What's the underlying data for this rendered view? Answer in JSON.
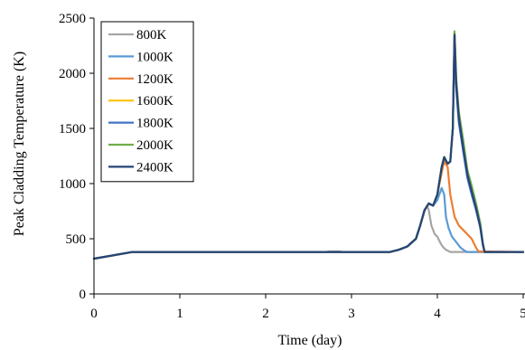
{
  "chart_data": {
    "type": "line",
    "title": "",
    "xlabel": "Time (day)",
    "ylabel": "Peak Cladding Temperature (K)",
    "xlim": [
      0,
      5
    ],
    "ylim": [
      0,
      2500
    ],
    "x_ticks": [
      0,
      1,
      2,
      3,
      4,
      5
    ],
    "x_tick_labels": [
      "0",
      "1",
      "2",
      "3",
      "4",
      "5"
    ],
    "y_ticks": [
      0,
      500,
      1000,
      1500,
      2000,
      2500
    ],
    "y_tick_labels": [
      "0",
      "500",
      "1000",
      "1500",
      "2000",
      "2500"
    ],
    "grid": false,
    "legend_position": "top-left",
    "series": [
      {
        "name": "800K",
        "color": "#a5a5a5",
        "points": [
          [
            0,
            320
          ],
          [
            0.45,
            380
          ],
          [
            2.7,
            380
          ],
          [
            2.75,
            385
          ],
          [
            2.85,
            385
          ],
          [
            2.9,
            380
          ],
          [
            3.45,
            380
          ],
          [
            3.55,
            400
          ],
          [
            3.65,
            430
          ],
          [
            3.75,
            500
          ],
          [
            3.8,
            620
          ],
          [
            3.85,
            750
          ],
          [
            3.88,
            800
          ],
          [
            3.9,
            760
          ],
          [
            3.93,
            620
          ],
          [
            3.97,
            540
          ],
          [
            4.0,
            520
          ],
          [
            4.03,
            470
          ],
          [
            4.06,
            430
          ],
          [
            4.1,
            400
          ],
          [
            4.15,
            380
          ],
          [
            5.0,
            380
          ]
        ]
      },
      {
        "name": "1000K",
        "color": "#5b9bd5",
        "points": [
          [
            0,
            320
          ],
          [
            0.45,
            380
          ],
          [
            3.45,
            380
          ],
          [
            3.55,
            400
          ],
          [
            3.65,
            430
          ],
          [
            3.75,
            500
          ],
          [
            3.8,
            620
          ],
          [
            3.85,
            760
          ],
          [
            3.9,
            820
          ],
          [
            3.95,
            800
          ],
          [
            4.0,
            850
          ],
          [
            4.05,
            960
          ],
          [
            4.08,
            900
          ],
          [
            4.1,
            700
          ],
          [
            4.13,
            600
          ],
          [
            4.17,
            520
          ],
          [
            4.22,
            470
          ],
          [
            4.27,
            420
          ],
          [
            4.32,
            390
          ],
          [
            4.35,
            380
          ],
          [
            5.0,
            380
          ]
        ]
      },
      {
        "name": "1200K",
        "color": "#ed7d31",
        "points": [
          [
            0,
            320
          ],
          [
            0.45,
            380
          ],
          [
            3.45,
            380
          ],
          [
            3.55,
            400
          ],
          [
            3.65,
            430
          ],
          [
            3.75,
            500
          ],
          [
            3.8,
            620
          ],
          [
            3.85,
            760
          ],
          [
            3.9,
            820
          ],
          [
            3.95,
            800
          ],
          [
            4.0,
            900
          ],
          [
            4.05,
            1100
          ],
          [
            4.08,
            1200
          ],
          [
            4.12,
            1150
          ],
          [
            4.15,
            900
          ],
          [
            4.2,
            700
          ],
          [
            4.25,
            620
          ],
          [
            4.3,
            580
          ],
          [
            4.35,
            540
          ],
          [
            4.4,
            500
          ],
          [
            4.45,
            420
          ],
          [
            4.48,
            385
          ],
          [
            5.0,
            380
          ]
        ]
      },
      {
        "name": "1600K",
        "color": "#ffc000",
        "points": [
          [
            0,
            320
          ],
          [
            0.45,
            380
          ],
          [
            3.45,
            380
          ],
          [
            3.55,
            400
          ],
          [
            3.65,
            430
          ],
          [
            3.75,
            500
          ],
          [
            3.8,
            620
          ],
          [
            3.85,
            760
          ],
          [
            3.9,
            820
          ],
          [
            3.95,
            800
          ],
          [
            4.0,
            900
          ],
          [
            4.05,
            1150
          ],
          [
            4.08,
            1240
          ],
          [
            4.12,
            1180
          ],
          [
            4.15,
            1200
          ],
          [
            4.18,
            1500
          ],
          [
            4.2,
            2370
          ],
          [
            4.22,
            1900
          ],
          [
            4.25,
            1600
          ],
          [
            4.3,
            1350
          ],
          [
            4.35,
            1100
          ],
          [
            4.4,
            950
          ],
          [
            4.45,
            800
          ],
          [
            4.5,
            620
          ],
          [
            4.53,
            450
          ],
          [
            4.55,
            380
          ],
          [
            5.0,
            380
          ]
        ]
      },
      {
        "name": "1800K",
        "color": "#4472c4",
        "points": [
          [
            0,
            320
          ],
          [
            0.45,
            380
          ],
          [
            3.45,
            380
          ],
          [
            3.55,
            400
          ],
          [
            3.65,
            430
          ],
          [
            3.75,
            500
          ],
          [
            3.8,
            620
          ],
          [
            3.85,
            760
          ],
          [
            3.9,
            820
          ],
          [
            3.95,
            800
          ],
          [
            4.0,
            900
          ],
          [
            4.05,
            1150
          ],
          [
            4.08,
            1240
          ],
          [
            4.12,
            1180
          ],
          [
            4.15,
            1200
          ],
          [
            4.18,
            1500
          ],
          [
            4.2,
            2340
          ],
          [
            4.22,
            1850
          ],
          [
            4.25,
            1550
          ],
          [
            4.3,
            1300
          ],
          [
            4.35,
            1050
          ],
          [
            4.4,
            900
          ],
          [
            4.45,
            760
          ],
          [
            4.5,
            600
          ],
          [
            4.53,
            440
          ],
          [
            4.55,
            380
          ],
          [
            5.0,
            380
          ]
        ]
      },
      {
        "name": "2000K",
        "color": "#70ad47",
        "points": [
          [
            0,
            320
          ],
          [
            0.45,
            380
          ],
          [
            3.45,
            380
          ],
          [
            3.55,
            400
          ],
          [
            3.65,
            430
          ],
          [
            3.75,
            500
          ],
          [
            3.8,
            620
          ],
          [
            3.85,
            760
          ],
          [
            3.9,
            820
          ],
          [
            3.95,
            800
          ],
          [
            4.0,
            900
          ],
          [
            4.05,
            1150
          ],
          [
            4.08,
            1240
          ],
          [
            4.12,
            1180
          ],
          [
            4.15,
            1200
          ],
          [
            4.18,
            1500
          ],
          [
            4.2,
            2380
          ],
          [
            4.22,
            1950
          ],
          [
            4.25,
            1650
          ],
          [
            4.3,
            1400
          ],
          [
            4.35,
            1120
          ],
          [
            4.4,
            980
          ],
          [
            4.45,
            820
          ],
          [
            4.5,
            640
          ],
          [
            4.53,
            460
          ],
          [
            4.55,
            380
          ],
          [
            5.0,
            380
          ]
        ]
      },
      {
        "name": "2400K",
        "color": "#264478",
        "points": [
          [
            0,
            320
          ],
          [
            0.45,
            380
          ],
          [
            3.45,
            380
          ],
          [
            3.55,
            400
          ],
          [
            3.65,
            430
          ],
          [
            3.75,
            500
          ],
          [
            3.8,
            620
          ],
          [
            3.85,
            760
          ],
          [
            3.9,
            820
          ],
          [
            3.95,
            800
          ],
          [
            4.0,
            900
          ],
          [
            4.05,
            1150
          ],
          [
            4.08,
            1240
          ],
          [
            4.12,
            1180
          ],
          [
            4.15,
            1200
          ],
          [
            4.18,
            1500
          ],
          [
            4.2,
            2350
          ],
          [
            4.22,
            1900
          ],
          [
            4.25,
            1600
          ],
          [
            4.3,
            1330
          ],
          [
            4.35,
            1080
          ],
          [
            4.4,
            930
          ],
          [
            4.45,
            780
          ],
          [
            4.5,
            610
          ],
          [
            4.53,
            450
          ],
          [
            4.55,
            380
          ],
          [
            5.0,
            380
          ]
        ]
      }
    ]
  }
}
